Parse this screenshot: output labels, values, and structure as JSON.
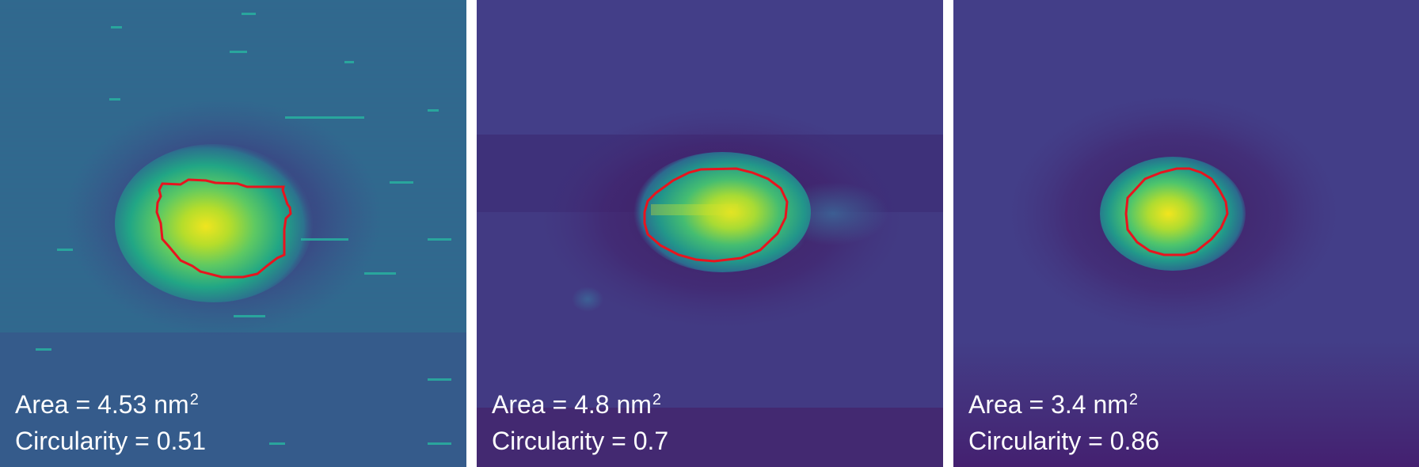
{
  "panels": [
    {
      "id": "sample-1",
      "area_label": "Area = ",
      "area_value": "4.53",
      "area_unit": "nm",
      "area_exponent": "2",
      "circularity_label": "Circularity = ",
      "circularity_value": "0.51"
    },
    {
      "id": "sample-2",
      "area_label": "Area = ",
      "area_value": "4.8",
      "area_unit": "nm",
      "area_exponent": "2",
      "circularity_label": "Circularity = ",
      "circularity_value": "0.7"
    },
    {
      "id": "sample-3",
      "area_label": "Area = ",
      "area_value": "3.4",
      "area_unit": "nm",
      "area_exponent": "2",
      "circularity_label": "Circularity = ",
      "circularity_value": "0.86"
    }
  ],
  "colors": {
    "contour": "#e8141e",
    "caption_text": "#ffffff",
    "colormap": "viridis"
  }
}
